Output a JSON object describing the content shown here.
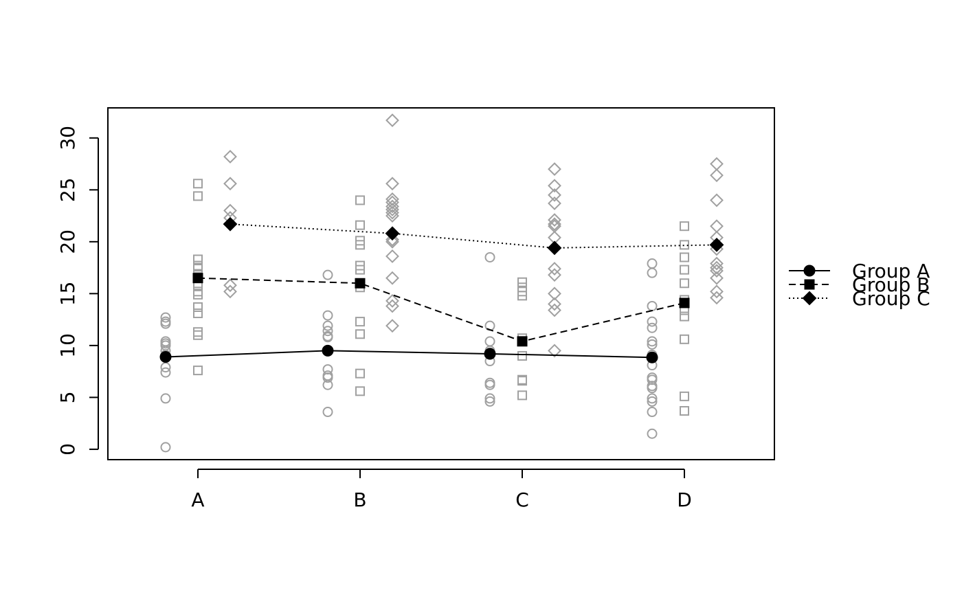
{
  "chart_data": {
    "type": "line",
    "categories": [
      "A",
      "B",
      "C",
      "D"
    ],
    "ylim": [
      -1,
      32.9
    ],
    "yticks": [
      0,
      5,
      10,
      15,
      20,
      25,
      30
    ],
    "point_color": "#a0a0a0",
    "legend": "right",
    "series": [
      {
        "name": "Group A",
        "color": "#000000",
        "marker": "circle",
        "line_style": "solid",
        "values": [
          8.9,
          9.5,
          9.2,
          8.85
        ],
        "points": [
          [
            12.7,
            12.3,
            12.1,
            10.4,
            10.2,
            10.0,
            9.5,
            9.1,
            7.9,
            7.4,
            4.9,
            0.2
          ],
          [
            16.8,
            12.9,
            11.9,
            11.4,
            10.9,
            10.8,
            7.7,
            7.1,
            6.9,
            6.2,
            3.6
          ],
          [
            18.5,
            11.9,
            10.4,
            9.5,
            9.3,
            8.5,
            6.4,
            6.2,
            4.9,
            4.6
          ],
          [
            17.9,
            17.0,
            13.8,
            12.3,
            11.7,
            10.4,
            10.1,
            9.1,
            8.1,
            6.9,
            6.7,
            6.1,
            5.9,
            4.9,
            4.6,
            3.6,
            1.5
          ]
        ]
      },
      {
        "name": "Group B",
        "color": "#000000",
        "marker": "square",
        "line_style": "dashed",
        "values": [
          16.5,
          16.0,
          10.4,
          14.1
        ],
        "points": [
          [
            25.6,
            24.4,
            18.3,
            17.7,
            17.4,
            16.8,
            15.8,
            15.2,
            14.9,
            13.7,
            13.1,
            11.3,
            11.0,
            7.6
          ],
          [
            24.0,
            21.6,
            20.1,
            19.7,
            17.7,
            17.3,
            16.0,
            15.6,
            12.3,
            11.1,
            7.3,
            5.6
          ],
          [
            16.1,
            15.6,
            15.2,
            14.8,
            10.7,
            10.4,
            9.0,
            6.7,
            6.6,
            5.2
          ],
          [
            21.5,
            19.7,
            18.5,
            17.3,
            16.0,
            14.4,
            13.4,
            12.8,
            10.6,
            5.1,
            3.7
          ]
        ]
      },
      {
        "name": "Group C",
        "color": "#000000",
        "marker": "diamond",
        "line_style": "dotted",
        "values": [
          21.7,
          20.8,
          19.4,
          19.7
        ],
        "points": [
          [
            28.2,
            25.6,
            23.0,
            22.3,
            15.8,
            15.2
          ],
          [
            31.7,
            25.6,
            24.1,
            23.8,
            23.4,
            23.1,
            22.8,
            22.5,
            20.2,
            20.0,
            18.6,
            16.5,
            14.3,
            13.8,
            11.9
          ],
          [
            27.0,
            25.4,
            24.5,
            23.7,
            22.1,
            21.7,
            21.5,
            20.4,
            17.4,
            16.8,
            15.0,
            14.0,
            13.4,
            9.5
          ],
          [
            27.5,
            26.4,
            24.0,
            21.5,
            20.4,
            19.3,
            17.9,
            17.5,
            17.2,
            16.5,
            15.2,
            14.6
          ]
        ]
      }
    ]
  }
}
